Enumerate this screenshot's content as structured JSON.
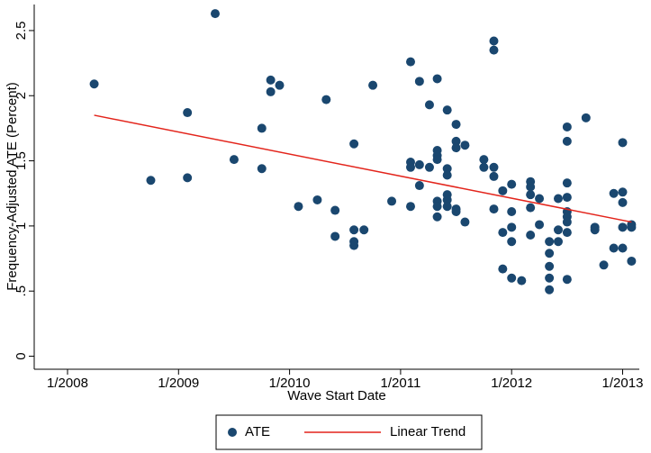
{
  "chart_data": {
    "type": "scatter",
    "x_label": "Wave Start Date",
    "y_label": "Frequency-Adjusted ATE (Percent)",
    "xlim": [
      2007.7,
      2013.15
    ],
    "ylim": [
      -0.1,
      2.7
    ],
    "xticks": [
      {
        "value": 2008,
        "label": "1/2008"
      },
      {
        "value": 2009,
        "label": "1/2009"
      },
      {
        "value": 2010,
        "label": "1/2010"
      },
      {
        "value": 2011,
        "label": "1/2011"
      },
      {
        "value": 2012,
        "label": "1/2012"
      },
      {
        "value": 2013,
        "label": "1/2013"
      }
    ],
    "yticks": [
      0,
      {
        "value": 0.5,
        "label": ".5"
      },
      1,
      1.5,
      2,
      2.5
    ],
    "grid": false,
    "legend_position": "bottom",
    "series": [
      {
        "name": "ATE",
        "type": "scatter",
        "color": "#1a476f",
        "x": [
          2008.24,
          2008.75,
          2009.08,
          2009.08,
          2009.33,
          2009.5,
          2009.75,
          2009.75,
          2009.83,
          2009.83,
          2009.91,
          2010.08,
          2010.25,
          2010.33,
          2010.41,
          2010.41,
          2010.58,
          2010.58,
          2010.58,
          2010.58,
          2010.67,
          2010.75,
          2010.92,
          2011.09,
          2011.09,
          2011.09,
          2011.09,
          2011.17,
          2011.17,
          2011.17,
          2011.26,
          2011.26,
          2011.33,
          2011.33,
          2011.33,
          2011.33,
          2011.33,
          2011.33,
          2011.33,
          2011.42,
          2011.42,
          2011.42,
          2011.42,
          2011.42,
          2011.42,
          2011.5,
          2011.5,
          2011.5,
          2011.5,
          2011.5,
          2011.58,
          2011.58,
          2011.75,
          2011.75,
          2011.84,
          2011.84,
          2011.84,
          2011.84,
          2011.84,
          2011.92,
          2011.92,
          2011.92,
          2012.0,
          2012.0,
          2012.0,
          2012.0,
          2012.0,
          2012.09,
          2012.17,
          2012.17,
          2012.17,
          2012.17,
          2012.17,
          2012.25,
          2012.25,
          2012.34,
          2012.34,
          2012.34,
          2012.34,
          2012.34,
          2012.42,
          2012.42,
          2012.42,
          2012.5,
          2012.5,
          2012.5,
          2012.5,
          2012.5,
          2012.5,
          2012.5,
          2012.5,
          2012.5,
          2012.67,
          2012.75,
          2012.75,
          2012.83,
          2012.92,
          2012.92,
          2013.0,
          2013.0,
          2013.0,
          2013.0,
          2013.0,
          2013.08,
          2013.08,
          2013.08
        ],
        "values": [
          2.09,
          1.35,
          1.87,
          1.37,
          2.63,
          1.51,
          1.75,
          1.44,
          2.12,
          2.03,
          2.08,
          1.15,
          1.2,
          1.97,
          1.12,
          0.92,
          1.63,
          0.97,
          0.88,
          0.85,
          0.97,
          2.08,
          1.19,
          2.26,
          1.49,
          1.45,
          1.15,
          2.11,
          1.47,
          1.31,
          1.93,
          1.45,
          2.13,
          1.58,
          1.54,
          1.51,
          1.19,
          1.15,
          1.07,
          1.89,
          1.44,
          1.39,
          1.24,
          1.2,
          1.15,
          1.78,
          1.65,
          1.6,
          1.13,
          1.11,
          1.62,
          1.03,
          1.51,
          1.45,
          2.42,
          2.35,
          1.45,
          1.38,
          1.13,
          1.27,
          0.95,
          0.67,
          1.32,
          1.11,
          0.99,
          0.88,
          0.6,
          0.58,
          1.34,
          1.3,
          1.24,
          1.14,
          0.93,
          1.21,
          1.01,
          0.88,
          0.79,
          0.69,
          0.6,
          0.51,
          1.21,
          0.97,
          0.88,
          1.76,
          1.65,
          1.33,
          1.22,
          1.11,
          1.07,
          1.03,
          0.95,
          0.59,
          1.83,
          0.99,
          0.97,
          0.7,
          1.25,
          0.83,
          1.64,
          1.26,
          1.18,
          0.99,
          0.83,
          1.01,
          0.99,
          0.73
        ]
      },
      {
        "name": "Linear Trend",
        "type": "line",
        "color": "#e3241b",
        "x": [
          2008.24,
          2013.08
        ],
        "values": [
          1.85,
          1.03
        ]
      }
    ]
  }
}
